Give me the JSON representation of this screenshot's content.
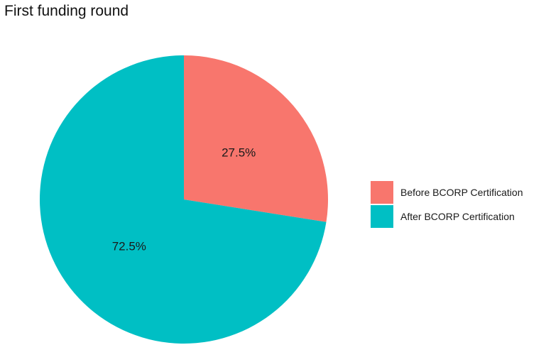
{
  "chart_data": {
    "type": "pie",
    "title": "First funding round",
    "start_angle_deg": 0,
    "direction": "clockwise",
    "slices": [
      {
        "name": "Before BCORP Certification",
        "value": 27.5,
        "label": "27.5%",
        "color": "#F8766D"
      },
      {
        "name": "After BCORP Certification",
        "value": 72.5,
        "label": "72.5%",
        "color": "#00BFC4"
      }
    ],
    "legend_position": "right",
    "legend": [
      {
        "label": "Before BCORP Certification",
        "color": "#F8766D"
      },
      {
        "label": "After BCORP Certification",
        "color": "#00BFC4"
      }
    ]
  }
}
